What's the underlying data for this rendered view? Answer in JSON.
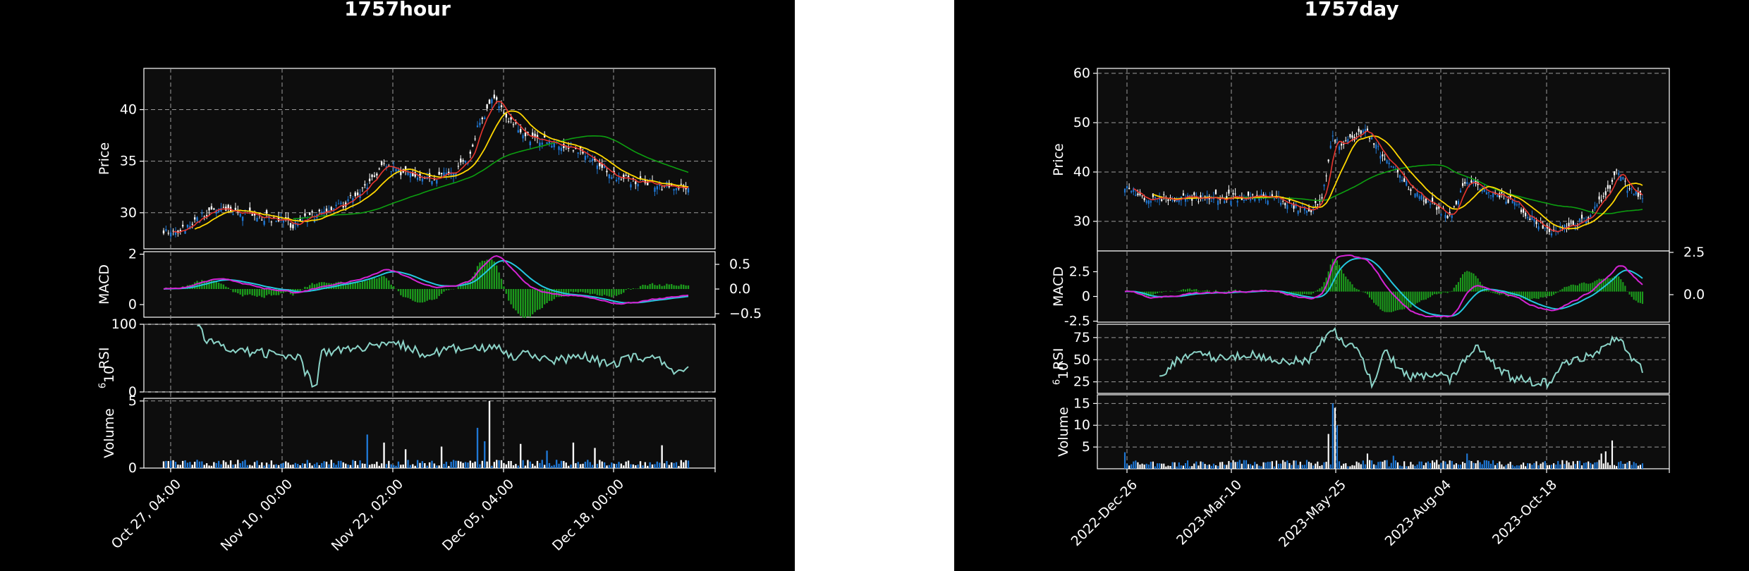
{
  "chart_data": [
    {
      "type": "candlestick",
      "title": "1757hour",
      "x_ticks": [
        "Oct 27, 04:00",
        "Nov 10, 00:00",
        "Nov 22, 02:00",
        "Dec 05, 04:00",
        "Dec 18, 00:00"
      ],
      "price": {
        "ylabel": "Price",
        "ylim": [
          26.5,
          44
        ],
        "ticks": [
          30,
          35,
          40
        ],
        "close_anchors": [
          [
            0,
            28.2
          ],
          [
            0.04,
            28.5
          ],
          [
            0.07,
            29.5
          ],
          [
            0.1,
            30.3
          ],
          [
            0.15,
            30
          ],
          [
            0.2,
            29.5
          ],
          [
            0.25,
            28.8
          ],
          [
            0.28,
            29.6
          ],
          [
            0.33,
            30.4
          ],
          [
            0.37,
            31.8
          ],
          [
            0.42,
            34.5
          ],
          [
            0.46,
            33.8
          ],
          [
            0.5,
            33.3
          ],
          [
            0.55,
            33.9
          ],
          [
            0.58,
            35.2
          ],
          [
            0.6,
            38.5
          ],
          [
            0.63,
            41
          ],
          [
            0.66,
            39
          ],
          [
            0.7,
            37.2
          ],
          [
            0.74,
            36.8
          ],
          [
            0.78,
            36.4
          ],
          [
            0.82,
            35
          ],
          [
            0.86,
            33.6
          ],
          [
            0.9,
            33
          ],
          [
            0.95,
            32.6
          ],
          [
            1,
            32.5
          ]
        ]
      },
      "macd": {
        "ylabel": "MACD",
        "ylim_left": [
          -0.5,
          2.1
        ],
        "left_ticks": [
          0,
          2
        ],
        "right_ticks": [
          0.5,
          0.0,
          -0.5
        ]
      },
      "rsi": {
        "ylabel": "RSI",
        "ylim": [
          0,
          100
        ],
        "ticks": [
          0,
          100
        ],
        "anchors": [
          [
            0.065,
            98
          ],
          [
            0.08,
            75
          ],
          [
            0.14,
            62
          ],
          [
            0.2,
            57
          ],
          [
            0.26,
            50
          ],
          [
            0.27,
            30
          ],
          [
            0.29,
            5
          ],
          [
            0.3,
            60
          ],
          [
            0.4,
            66
          ],
          [
            0.45,
            70
          ],
          [
            0.5,
            55
          ],
          [
            0.55,
            64
          ],
          [
            0.6,
            62
          ],
          [
            0.63,
            70
          ],
          [
            0.66,
            53
          ],
          [
            0.7,
            58
          ],
          [
            0.74,
            45
          ],
          [
            0.8,
            52
          ],
          [
            0.85,
            40
          ],
          [
            0.9,
            53
          ],
          [
            0.95,
            45
          ],
          [
            0.97,
            33
          ]
        ]
      },
      "volume": {
        "ylabel": "Volume",
        "exponent": "6",
        "ylim": [
          0,
          5.2
        ],
        "ticks": [
          0,
          5
        ],
        "spikes": [
          [
            0.6,
            3.0
          ],
          [
            0.62,
            5.0
          ],
          [
            0.61,
            2.0
          ],
          [
            0.39,
            2.5
          ],
          [
            0.42,
            1.9
          ],
          [
            0.46,
            1.4
          ],
          [
            0.53,
            1.6
          ],
          [
            0.68,
            1.8
          ],
          [
            0.73,
            1.3
          ],
          [
            0.78,
            1.9
          ],
          [
            0.82,
            1.5
          ],
          [
            0.95,
            1.7
          ]
        ]
      },
      "colors": {
        "up": "#1f77d4",
        "down": "#ffffff",
        "ma_fast": "#e8362f",
        "ma_mid": "#ffd700",
        "ma_slow": "#0c9f10",
        "macd": "#d424d4",
        "signal": "#24c8e0",
        "hist": "#1c9a1c",
        "rsi": "#8cd4c8"
      }
    },
    {
      "type": "candlestick",
      "title": "1757day",
      "x_ticks": [
        "2022-Dec-26",
        "2023-Mar-10",
        "2023-May-25",
        "2023-Aug-04",
        "2023-Oct-18"
      ],
      "price": {
        "ylabel": "Price",
        "ylim": [
          24,
          61
        ],
        "ticks": [
          30,
          40,
          50,
          60
        ],
        "close_anchors": [
          [
            0,
            37
          ],
          [
            0.04,
            35
          ],
          [
            0.08,
            34.5
          ],
          [
            0.15,
            34.8
          ],
          [
            0.25,
            34.8
          ],
          [
            0.3,
            34.5
          ],
          [
            0.35,
            32
          ],
          [
            0.38,
            34
          ],
          [
            0.4,
            47
          ],
          [
            0.42,
            45
          ],
          [
            0.45,
            47.5
          ],
          [
            0.47,
            48
          ],
          [
            0.5,
            43
          ],
          [
            0.55,
            37
          ],
          [
            0.6,
            33
          ],
          [
            0.63,
            31
          ],
          [
            0.66,
            38.5
          ],
          [
            0.7,
            36
          ],
          [
            0.75,
            34
          ],
          [
            0.79,
            30
          ],
          [
            0.83,
            28
          ],
          [
            0.87,
            29.5
          ],
          [
            0.9,
            31
          ],
          [
            0.93,
            36
          ],
          [
            0.95,
            40
          ],
          [
            0.97,
            37
          ],
          [
            1,
            35
          ]
        ]
      },
      "macd": {
        "ylabel": "MACD",
        "ylim_left": [
          -2.6,
          4.6
        ],
        "left_ticks": [
          -2.5,
          0.0,
          2.5
        ],
        "right_ticks": [
          2.5,
          0.0
        ]
      },
      "rsi": {
        "ylabel": "RSI",
        "ylim": [
          12,
          90
        ],
        "ticks": [
          25,
          50,
          75
        ],
        "anchors": [
          [
            0.07,
            30
          ],
          [
            0.09,
            45
          ],
          [
            0.13,
            58
          ],
          [
            0.18,
            52
          ],
          [
            0.24,
            56
          ],
          [
            0.3,
            50
          ],
          [
            0.35,
            47
          ],
          [
            0.38,
            70
          ],
          [
            0.4,
            88
          ],
          [
            0.42,
            70
          ],
          [
            0.45,
            65
          ],
          [
            0.47,
            32
          ],
          [
            0.48,
            20
          ],
          [
            0.5,
            60
          ],
          [
            0.53,
            40
          ],
          [
            0.55,
            30
          ],
          [
            0.6,
            35
          ],
          [
            0.63,
            28
          ],
          [
            0.68,
            68
          ],
          [
            0.72,
            40
          ],
          [
            0.75,
            30
          ],
          [
            0.8,
            22
          ],
          [
            0.82,
            25
          ],
          [
            0.85,
            45
          ],
          [
            0.9,
            55
          ],
          [
            0.93,
            62
          ],
          [
            0.95,
            80
          ],
          [
            0.98,
            50
          ],
          [
            1,
            37
          ]
        ]
      },
      "volume": {
        "ylabel": "Volume",
        "exponent": "6",
        "ylim": [
          0,
          17
        ],
        "ticks": [
          5,
          10,
          15
        ],
        "spikes": [
          [
            0.4,
            15
          ],
          [
            0.405,
            14
          ],
          [
            0.41,
            10
          ],
          [
            0.395,
            8
          ],
          [
            0.47,
            3.5
          ],
          [
            0.52,
            3
          ],
          [
            0.66,
            3.5
          ],
          [
            0.93,
            4
          ],
          [
            0.94,
            6.5
          ],
          [
            0.92,
            3.5
          ],
          [
            0.0,
            3.8
          ]
        ]
      },
      "colors": {
        "up": "#1f77d4",
        "down": "#ffffff",
        "ma_fast": "#e8362f",
        "ma_mid": "#ffd700",
        "ma_slow": "#0c9f10",
        "macd": "#d424d4",
        "signal": "#24c8e0",
        "hist": "#1c9a1c",
        "rsi": "#8cd4c8"
      }
    }
  ]
}
